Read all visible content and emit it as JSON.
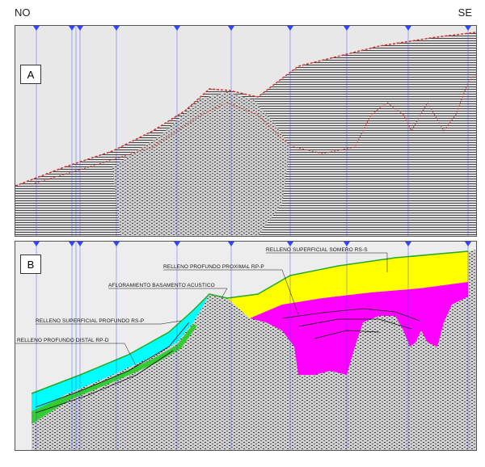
{
  "orientation": {
    "left": "NO",
    "right": "SE"
  },
  "panels": {
    "a": {
      "label": "A"
    },
    "b": {
      "label": "B",
      "annotations": {
        "relleno_superficial_somero": "RELLENO SUPERFICIAL SOMERO RS-S",
        "relleno_profundo_proximal": "RELLENO PROFUNDO PROXIMAL RP-P",
        "afloramiento_basamento": "AFLORAMIENTO BASAMENTO ACUSTICO",
        "relleno_superficial_profundo": "RELLENO SUPERFICIAL PROFUNDO RS-P",
        "relleno_profundo_distal": "RELLENO PROFUNDO DISTAL RP-D"
      }
    }
  },
  "colors": {
    "seismic_bg": "#d6d6d6",
    "seafloor_horizon": "#d03030",
    "trace_lines": "#3344ff",
    "fill_cyan": "#00ffff",
    "fill_yellow": "#ffff00",
    "fill_magenta": "#ff00ff",
    "fill_green": "#33cc33"
  }
}
